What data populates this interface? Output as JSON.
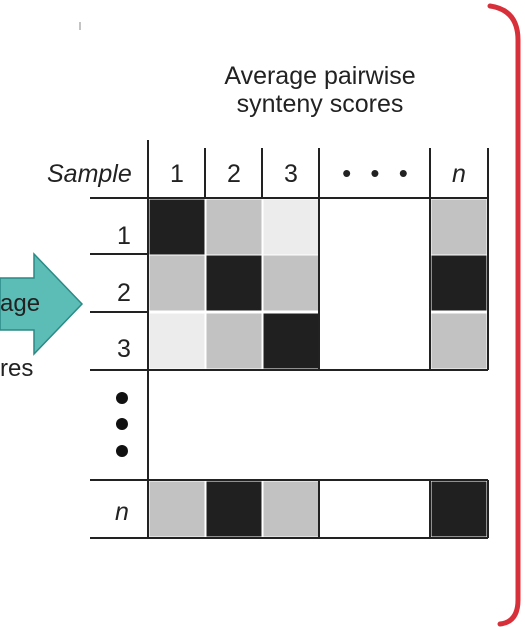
{
  "header": {
    "title_line1": "Average pairwise",
    "title_line2": "synteny scores"
  },
  "matrix": {
    "corner_label": "Sample",
    "column_labels": [
      "1",
      "2",
      "3",
      "n"
    ],
    "row_labels": [
      "1",
      "2",
      "3",
      "n"
    ],
    "ellipsis": "• • •",
    "cells": [
      [
        "#202020",
        "#c2c2c2",
        "#ececec",
        "#c2c2c2"
      ],
      [
        "#c2c2c2",
        "#202020",
        "#c2c2c2",
        "#202020"
      ],
      [
        "#ececec",
        "#c2c2c2",
        "#202020",
        "#c2c2c2"
      ],
      [
        "#c2c2c2",
        "#202020",
        "#c2c2c2",
        "#202020"
      ]
    ]
  },
  "side": {
    "arrow_text": "age",
    "below_arrow_text": "res",
    "arrow_color": "#5bbdb6"
  },
  "frame": {
    "border_color": "#d8303a"
  }
}
